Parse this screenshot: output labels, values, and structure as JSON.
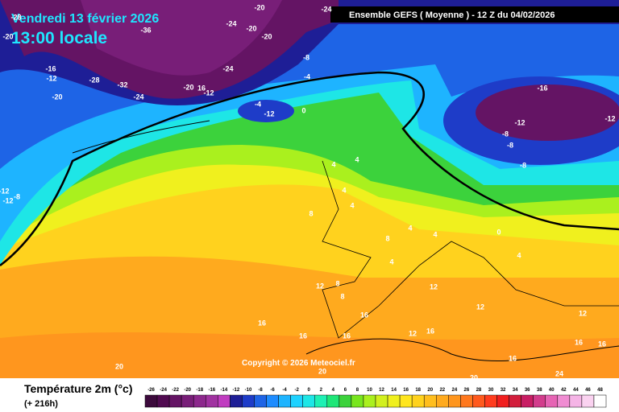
{
  "header": {
    "date": "Vendredi 13 février 2026",
    "time": "13:00 locale",
    "model": "Ensemble GEFS  ( Moyenne )  -  12 Z du 04/02/2026"
  },
  "copyright": "Copyright © 2026 Meteociel.fr",
  "legend": {
    "title": "Température 2m (°c)",
    "lead": "(+ 216h)",
    "ticks": [
      -26,
      -24,
      -22,
      -20,
      -18,
      -16,
      -14,
      -12,
      -10,
      -8,
      -6,
      -4,
      -2,
      0,
      2,
      4,
      6,
      8,
      10,
      12,
      14,
      16,
      18,
      20,
      22,
      24,
      26,
      28,
      30,
      32,
      34,
      36,
      38,
      40,
      42,
      44,
      46,
      48
    ],
    "colors": [
      "#3c0a3c",
      "#500a50",
      "#641464",
      "#781e78",
      "#8c288c",
      "#a032a0",
      "#c03cc0",
      "#1e1e96",
      "#1e3cc8",
      "#1e64e6",
      "#1e8cff",
      "#1eb4ff",
      "#1ed2ff",
      "#1ee6e6",
      "#1ef0b4",
      "#1ee678",
      "#3cd23c",
      "#78e61e",
      "#aaf01e",
      "#d2f01e",
      "#f0f01e",
      "#ffe61e",
      "#ffd21e",
      "#ffbe1e",
      "#ffaa1e",
      "#ff961e",
      "#ff781e",
      "#ff5a1e",
      "#ff3c1e",
      "#f01e1e",
      "#d21e3c",
      "#c81e64",
      "#d23c8c",
      "#e664b4",
      "#f08cd2",
      "#f5b4e6",
      "#fad2f0",
      "#ffffff"
    ]
  },
  "labels": [
    "-20",
    "-36",
    "-24",
    "-20",
    "-20",
    "-20",
    "-24",
    "-28",
    "-16",
    "-12",
    "-28",
    "-32",
    "-20",
    "-24",
    "-20",
    "16",
    "-12",
    "-24",
    "-8",
    "-4",
    "0",
    "-4",
    "-12",
    "-16",
    "-12",
    "-12",
    "-8",
    "-8",
    "-8",
    "-12",
    "-12",
    "-8",
    "4",
    "4",
    "4",
    "8",
    "4",
    "8",
    "4",
    "4",
    "0",
    "4",
    "12",
    "8",
    "8",
    "16",
    "16",
    "16",
    "16",
    "12",
    "16",
    "20",
    "20",
    "20",
    "24",
    "16",
    "16",
    "12",
    "4",
    "12",
    "12",
    "16"
  ]
}
